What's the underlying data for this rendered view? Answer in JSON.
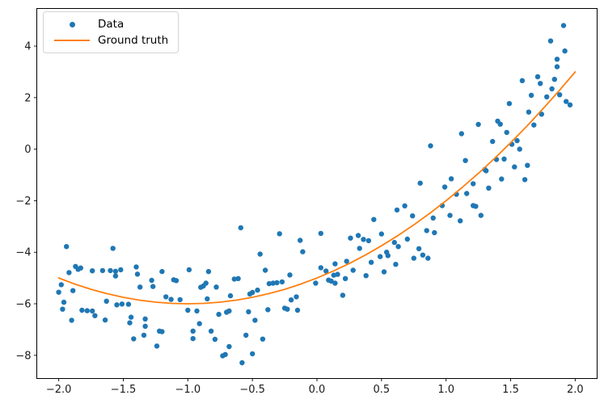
{
  "chart_data": {
    "type": "scatter",
    "title": "",
    "xlabel": "",
    "ylabel": "",
    "grid": false,
    "background": "#ffffff",
    "spine_color": "#000000",
    "xlim": [
      -2.17,
      2.17
    ],
    "ylim": [
      -8.9,
      5.46
    ],
    "xticks": {
      "values": [
        -2.0,
        -1.5,
        -1.0,
        -0.5,
        0.0,
        0.5,
        1.0,
        1.5,
        2.0
      ],
      "labels": [
        "−2.0",
        "−1.5",
        "−1.0",
        "−0.5",
        "0.0",
        "0.5",
        "1.0",
        "1.5",
        "2.0"
      ]
    },
    "yticks": {
      "values": [
        -8,
        -6,
        -4,
        -2,
        0,
        2,
        4
      ],
      "labels": [
        "−8",
        "−6",
        "−4",
        "−2",
        "0",
        "2",
        "4"
      ]
    },
    "legend": {
      "position": "upper left",
      "items": [
        {
          "label": "Data",
          "type": "marker",
          "color": "#1f77b4"
        },
        {
          "label": "Ground truth",
          "type": "line",
          "color": "#ff7f0e"
        }
      ]
    },
    "series": [
      {
        "name": "Data",
        "type": "scatter",
        "color": "#1f77b4",
        "marker_radius": 3.2,
        "points": [
          [
            1.25,
            0.96
          ],
          [
            1.12,
            0.6
          ],
          [
            1.36,
            0.3
          ],
          [
            1.55,
            0.33
          ],
          [
            1.91,
            4.8
          ],
          [
            1.81,
            4.2
          ],
          [
            1.92,
            3.81
          ],
          [
            1.86,
            3.49
          ],
          [
            1.86,
            3.2
          ],
          [
            1.71,
            2.81
          ],
          [
            1.84,
            2.71
          ],
          [
            1.59,
            2.66
          ],
          [
            1.73,
            2.55
          ],
          [
            1.82,
            2.34
          ],
          [
            1.66,
            2.09
          ],
          [
            1.88,
            2.11
          ],
          [
            1.78,
            2.03
          ],
          [
            1.93,
            1.85
          ],
          [
            1.49,
            1.77
          ],
          [
            1.96,
            1.72
          ],
          [
            1.64,
            1.44
          ],
          [
            1.74,
            1.36
          ],
          [
            1.4,
            1.09
          ],
          [
            1.42,
            0.97
          ],
          [
            1.68,
            0.94
          ],
          [
            1.47,
            0.65
          ],
          [
            1.51,
            0.19
          ],
          [
            0.88,
            0.13
          ],
          [
            1.57,
            0.0
          ],
          [
            1.39,
            -0.4
          ],
          [
            1.45,
            -0.38
          ],
          [
            1.3,
            -0.79
          ],
          [
            1.31,
            -0.84
          ],
          [
            1.53,
            -0.69
          ],
          [
            1.63,
            -0.63
          ],
          [
            1.43,
            -1.16
          ],
          [
            1.61,
            -1.18
          ],
          [
            1.21,
            -1.34
          ],
          [
            1.33,
            -1.51
          ],
          [
            1.21,
            -2.19
          ],
          [
            1.23,
            -2.22
          ],
          [
            1.27,
            -2.57
          ],
          [
            1.15,
            -0.44
          ],
          [
            1.04,
            -1.15
          ],
          [
            0.99,
            -1.47
          ],
          [
            1.16,
            -1.72
          ],
          [
            1.08,
            -1.75
          ],
          [
            0.8,
            -1.32
          ],
          [
            0.68,
            -2.2
          ],
          [
            0.62,
            -2.36
          ],
          [
            0.74,
            -2.59
          ],
          [
            0.97,
            -2.19
          ],
          [
            0.9,
            -2.67
          ],
          [
            0.44,
            -2.73
          ],
          [
            0.85,
            -3.16
          ],
          [
            0.91,
            -3.24
          ],
          [
            1.03,
            -2.57
          ],
          [
            1.11,
            -2.78
          ],
          [
            0.5,
            -3.29
          ],
          [
            0.26,
            -3.45
          ],
          [
            0.32,
            -3.35
          ],
          [
            0.36,
            -3.5
          ],
          [
            0.4,
            -3.55
          ],
          [
            0.33,
            -3.85
          ],
          [
            0.6,
            -3.62
          ],
          [
            0.63,
            -3.78
          ],
          [
            0.7,
            -3.49
          ],
          [
            0.54,
            -4.0
          ],
          [
            0.55,
            -4.13
          ],
          [
            0.49,
            -4.17
          ],
          [
            0.79,
            -3.86
          ],
          [
            0.82,
            -4.11
          ],
          [
            0.75,
            -4.23
          ],
          [
            0.86,
            -4.23
          ],
          [
            -0.59,
            -3.05
          ],
          [
            -0.29,
            -3.28
          ],
          [
            -0.13,
            -3.54
          ],
          [
            0.03,
            -3.27
          ],
          [
            -0.44,
            -4.07
          ],
          [
            -0.11,
            -3.98
          ],
          [
            -1.94,
            -3.78
          ],
          [
            -1.58,
            -3.85
          ],
          [
            -1.87,
            -4.55
          ],
          [
            -1.85,
            -4.66
          ],
          [
            -1.83,
            -4.61
          ],
          [
            -1.92,
            -4.79
          ],
          [
            -1.74,
            -4.72
          ],
          [
            -1.66,
            -4.71
          ],
          [
            -1.6,
            -4.71
          ],
          [
            -1.56,
            -4.74
          ],
          [
            -1.52,
            -4.68
          ],
          [
            -1.56,
            -4.92
          ],
          [
            -1.4,
            -4.57
          ],
          [
            -1.39,
            -4.85
          ],
          [
            -1.2,
            -4.75
          ],
          [
            -1.11,
            -5.07
          ],
          [
            -1.09,
            -5.1
          ],
          [
            -1.28,
            -5.09
          ],
          [
            -1.37,
            -5.35
          ],
          [
            -1.27,
            -5.33
          ],
          [
            -1.98,
            -5.26
          ],
          [
            -2.0,
            -5.55
          ],
          [
            -1.89,
            -5.49
          ],
          [
            -1.96,
            -5.94
          ],
          [
            -1.97,
            -6.21
          ],
          [
            -1.63,
            -5.9
          ],
          [
            -1.55,
            -6.04
          ],
          [
            -1.51,
            -6.01
          ],
          [
            -1.46,
            -6.02
          ],
          [
            -1.82,
            -6.25
          ],
          [
            -1.78,
            -6.27
          ],
          [
            -1.74,
            -6.28
          ],
          [
            -1.72,
            -6.46
          ],
          [
            -1.9,
            -6.64
          ],
          [
            -1.64,
            -6.63
          ],
          [
            -1.44,
            -6.52
          ],
          [
            -1.33,
            -6.59
          ],
          [
            -1.45,
            -6.74
          ],
          [
            -1.33,
            -6.87
          ],
          [
            -1.42,
            -7.36
          ],
          [
            -1.34,
            -7.22
          ],
          [
            -1.22,
            -7.06
          ],
          [
            -1.2,
            -7.08
          ],
          [
            -1.24,
            -7.64
          ],
          [
            -1.17,
            -5.73
          ],
          [
            -1.13,
            -5.83
          ],
          [
            -1.06,
            -5.84
          ],
          [
            -0.99,
            -4.68
          ],
          [
            -0.84,
            -4.75
          ],
          [
            -0.9,
            -5.36
          ],
          [
            -0.88,
            -5.31
          ],
          [
            -0.86,
            -5.2
          ],
          [
            -0.78,
            -5.35
          ],
          [
            -0.64,
            -5.04
          ],
          [
            -0.61,
            -5.02
          ],
          [
            -0.85,
            -5.81
          ],
          [
            -0.67,
            -5.69
          ],
          [
            -0.52,
            -5.62
          ],
          [
            -0.5,
            -5.56
          ],
          [
            -0.46,
            -5.47
          ],
          [
            -0.4,
            -4.7
          ],
          [
            -0.37,
            -5.22
          ],
          [
            -0.34,
            -5.2
          ],
          [
            -0.31,
            -5.18
          ],
          [
            -0.27,
            -5.15
          ],
          [
            -0.21,
            -4.88
          ],
          [
            -0.01,
            -5.2
          ],
          [
            0.03,
            -4.6
          ],
          [
            -1.0,
            -6.25
          ],
          [
            -0.93,
            -6.28
          ],
          [
            -0.76,
            -6.41
          ],
          [
            -0.7,
            -6.33
          ],
          [
            -0.68,
            -6.28
          ],
          [
            -0.53,
            -6.31
          ],
          [
            -0.38,
            -6.23
          ],
          [
            -0.25,
            -6.17
          ],
          [
            -0.23,
            -6.21
          ],
          [
            -0.16,
            -5.73
          ],
          [
            -0.2,
            -5.85
          ],
          [
            -0.15,
            -6.25
          ],
          [
            -0.91,
            -6.77
          ],
          [
            -0.96,
            -7.06
          ],
          [
            -0.96,
            -7.35
          ],
          [
            -0.82,
            -7.06
          ],
          [
            -0.79,
            -7.38
          ],
          [
            -0.55,
            -7.22
          ],
          [
            -0.48,
            -6.64
          ],
          [
            -0.42,
            -7.37
          ],
          [
            -0.68,
            -7.66
          ],
          [
            -0.73,
            -8.02
          ],
          [
            -0.71,
            -7.97
          ],
          [
            -0.58,
            -8.29
          ],
          [
            -0.5,
            -7.94
          ],
          [
            0.14,
            -4.45
          ],
          [
            0.23,
            -4.35
          ],
          [
            0.42,
            -4.39
          ],
          [
            0.61,
            -4.47
          ],
          [
            0.28,
            -4.7
          ],
          [
            0.38,
            -4.91
          ],
          [
            0.52,
            -4.76
          ],
          [
            0.13,
            -4.89
          ],
          [
            0.16,
            -4.86
          ],
          [
            0.09,
            -5.08
          ],
          [
            0.11,
            -5.12
          ],
          [
            0.14,
            -5.2
          ],
          [
            0.22,
            -5.02
          ],
          [
            0.2,
            -5.67
          ],
          [
            0.07,
            -4.73
          ]
        ]
      },
      {
        "name": "Ground truth",
        "type": "line",
        "color": "#ff7f0e",
        "line_width": 1.8,
        "points": [
          [
            -2.0,
            -5.0
          ],
          [
            -1.875,
            -5.234
          ],
          [
            -1.75,
            -5.438
          ],
          [
            -1.625,
            -5.609
          ],
          [
            -1.5,
            -5.75
          ],
          [
            -1.375,
            -5.859
          ],
          [
            -1.25,
            -5.938
          ],
          [
            -1.125,
            -5.984
          ],
          [
            -1.0,
            -6.0
          ],
          [
            -0.875,
            -5.984
          ],
          [
            -0.75,
            -5.938
          ],
          [
            -0.625,
            -5.859
          ],
          [
            -0.5,
            -5.75
          ],
          [
            -0.375,
            -5.609
          ],
          [
            -0.25,
            -5.438
          ],
          [
            -0.125,
            -5.234
          ],
          [
            0.0,
            -5.0
          ],
          [
            0.125,
            -4.734
          ],
          [
            0.25,
            -4.438
          ],
          [
            0.375,
            -4.109
          ],
          [
            0.5,
            -3.75
          ],
          [
            0.625,
            -3.359
          ],
          [
            0.75,
            -2.938
          ],
          [
            0.875,
            -2.484
          ],
          [
            1.0,
            -2.0
          ],
          [
            1.125,
            -1.484
          ],
          [
            1.25,
            -0.938
          ],
          [
            1.375,
            -0.359
          ],
          [
            1.5,
            0.25
          ],
          [
            1.625,
            0.891
          ],
          [
            1.75,
            1.563
          ],
          [
            1.875,
            2.266
          ],
          [
            2.0,
            3.0
          ]
        ]
      }
    ]
  }
}
